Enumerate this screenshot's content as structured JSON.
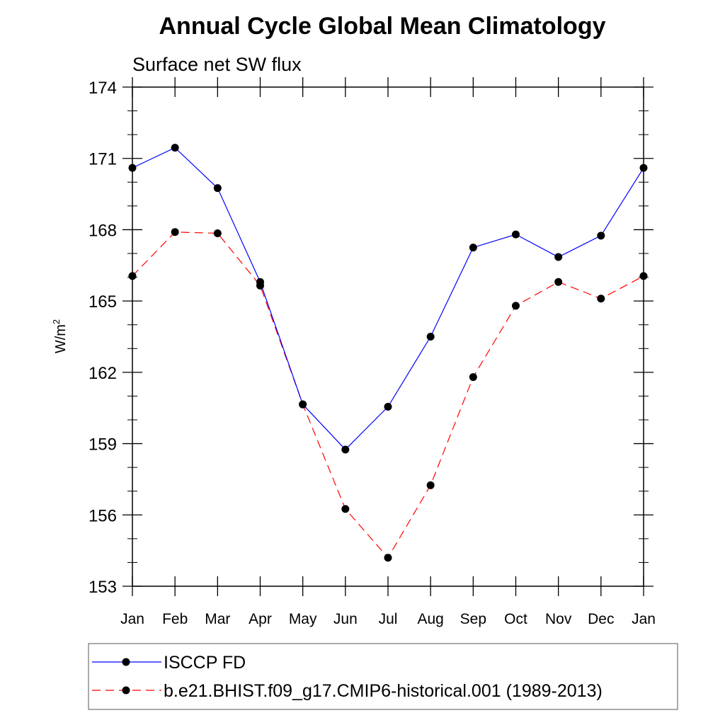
{
  "chart_data": {
    "type": "line",
    "title": "Annual Cycle Global Mean Climatology",
    "subtitle": "Surface net SW flux",
    "ylabel": "W/m",
    "ylabel_sup": "2",
    "categories": [
      "Jan",
      "Feb",
      "Mar",
      "Apr",
      "May",
      "Jun",
      "Jul",
      "Aug",
      "Sep",
      "Oct",
      "Nov",
      "Dec",
      "Jan"
    ],
    "ylim": [
      153,
      174
    ],
    "yticks": [
      "153",
      "156",
      "159",
      "162",
      "165",
      "168",
      "171",
      "174"
    ],
    "grid": false,
    "legend_position": "bottom",
    "series": [
      {
        "name": "ISCCP FD",
        "color": "#0000ff",
        "line_style": "solid",
        "values": [
          170.6,
          171.45,
          169.75,
          165.8,
          160.65,
          158.75,
          160.55,
          163.5,
          167.25,
          167.8,
          166.85,
          167.75,
          170.6
        ]
      },
      {
        "name": "b.e21.BHIST.f09_g17.CMIP6-historical.001 (1989-2013)",
        "color": "#ff0000",
        "line_style": "dashed",
        "values": [
          166.05,
          167.9,
          167.85,
          165.65,
          160.65,
          156.25,
          154.2,
          157.25,
          161.8,
          164.8,
          165.8,
          165.1,
          166.05
        ]
      }
    ]
  }
}
